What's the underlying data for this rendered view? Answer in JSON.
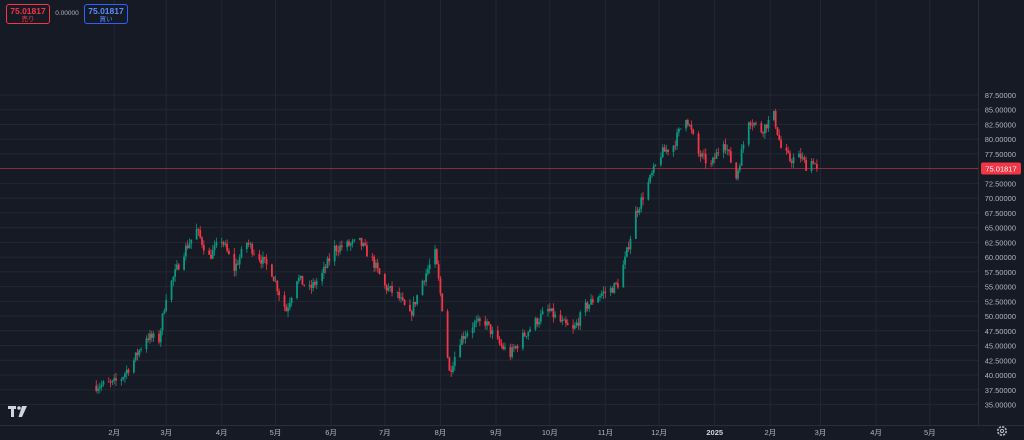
{
  "quote": {
    "sell_price": "75.01817",
    "sell_label": "売り",
    "spread": "0.00000",
    "buy_price": "75.01817",
    "buy_label": "買い"
  },
  "colors": {
    "background": "#161a25",
    "grid": "#232733",
    "up": "#089981",
    "down": "#f23645",
    "text": "#b2b5be",
    "price_line": "#f23645"
  },
  "icons": {
    "logo": "tradingview-logo-icon",
    "settings": "gear-icon"
  },
  "chart_data": {
    "type": "candlestick",
    "x_tick_labels": [
      "2月",
      "3月",
      "4月",
      "5月",
      "6月",
      "7月",
      "8月",
      "9月",
      "10月",
      "11月",
      "12月",
      "2025",
      "2月",
      "3月",
      "4月",
      "5月"
    ],
    "y_tick_labels": [
      "35.00000",
      "37.50000",
      "40.00000",
      "42.50000",
      "45.00000",
      "47.50000",
      "50.00000",
      "52.50000",
      "55.00000",
      "57.50000",
      "60.00000",
      "62.50000",
      "65.00000",
      "67.50000",
      "70.00000",
      "72.50000",
      "75.00000",
      "77.50000",
      "80.00000",
      "82.50000",
      "85.00000",
      "87.50000"
    ],
    "ylim": [
      33.8,
      89.4
    ],
    "time_range": [
      "2024-01-01",
      "2025-05-31"
    ],
    "last_price": 75.01817,
    "last_price_label": "75.01817",
    "grid": true,
    "close_path": [
      [
        "2024-01-22",
        38.2
      ],
      [
        "2024-01-31",
        38.5
      ],
      [
        "2024-02-05",
        39.5
      ],
      [
        "2024-02-12",
        42.5
      ],
      [
        "2024-02-19",
        46.5
      ],
      [
        "2024-02-26",
        46.0
      ],
      [
        "2024-03-01",
        53.5
      ],
      [
        "2024-03-05",
        56.5
      ],
      [
        "2024-03-11",
        61.0
      ],
      [
        "2024-03-18",
        64.5
      ],
      [
        "2024-03-25",
        60.0
      ],
      [
        "2024-04-01",
        63.0
      ],
      [
        "2024-04-08",
        58.0
      ],
      [
        "2024-04-15",
        62.5
      ],
      [
        "2024-04-22",
        60.0
      ],
      [
        "2024-04-29",
        57.5
      ],
      [
        "2024-05-03",
        54.0
      ],
      [
        "2024-05-07",
        51.0
      ],
      [
        "2024-05-13",
        56.5
      ],
      [
        "2024-05-20",
        54.5
      ],
      [
        "2024-05-27",
        57.0
      ],
      [
        "2024-06-03",
        61.5
      ],
      [
        "2024-06-10",
        62.0
      ],
      [
        "2024-06-17",
        62.5
      ],
      [
        "2024-06-24",
        59.5
      ],
      [
        "2024-07-01",
        55.0
      ],
      [
        "2024-07-08",
        53.5
      ],
      [
        "2024-07-15",
        50.0
      ],
      [
        "2024-07-22",
        56.0
      ],
      [
        "2024-07-29",
        60.5
      ],
      [
        "2024-08-02",
        51.5
      ],
      [
        "2024-08-06",
        40.5
      ],
      [
        "2024-08-12",
        46.0
      ],
      [
        "2024-08-19",
        48.5
      ],
      [
        "2024-08-26",
        49.0
      ],
      [
        "2024-09-02",
        45.5
      ],
      [
        "2024-09-09",
        43.5
      ],
      [
        "2024-09-16",
        46.5
      ],
      [
        "2024-09-23",
        49.0
      ],
      [
        "2024-09-30",
        51.0
      ],
      [
        "2024-10-07",
        49.0
      ],
      [
        "2024-10-14",
        47.5
      ],
      [
        "2024-10-21",
        51.5
      ],
      [
        "2024-10-28",
        53.5
      ],
      [
        "2024-11-04",
        54.5
      ],
      [
        "2024-11-08",
        55.5
      ],
      [
        "2024-11-12",
        59.5
      ],
      [
        "2024-11-18",
        67.5
      ],
      [
        "2024-11-25",
        72.5
      ],
      [
        "2024-12-02",
        77.5
      ],
      [
        "2024-12-09",
        79.0
      ],
      [
        "2024-12-16",
        84.0
      ],
      [
        "2024-12-23",
        77.5
      ],
      [
        "2024-12-30",
        75.5
      ],
      [
        "2025-01-06",
        80.0
      ],
      [
        "2025-01-13",
        73.5
      ],
      [
        "2025-01-20",
        83.5
      ],
      [
        "2025-01-27",
        81.5
      ],
      [
        "2025-02-03",
        84.0
      ],
      [
        "2025-02-07",
        78.5
      ],
      [
        "2025-02-12",
        76.5
      ],
      [
        "2025-02-18",
        77.0
      ],
      [
        "2025-02-21",
        75.5
      ],
      [
        "2025-02-25",
        76.5
      ],
      [
        "2025-02-27",
        75.02
      ]
    ]
  }
}
